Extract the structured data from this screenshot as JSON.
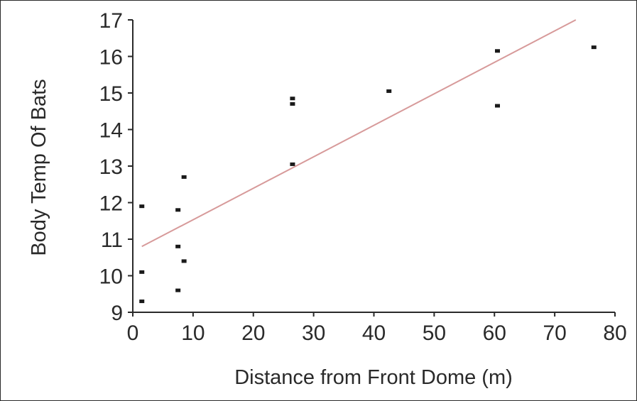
{
  "chart_data": {
    "type": "scatter",
    "title": "",
    "xlabel": "Distance from Front Dome (m)",
    "ylabel": "Body Temp Of Bats",
    "xlim": [
      0,
      80
    ],
    "ylim": [
      9,
      17
    ],
    "x_ticks": [
      "0",
      "10",
      "20",
      "30",
      "40",
      "50",
      "60",
      "70",
      "80"
    ],
    "y_ticks": [
      "9",
      "10",
      "11",
      "12",
      "13",
      "14",
      "15",
      "16",
      "17"
    ],
    "grid": false,
    "legend": "none",
    "series": [
      {
        "points": [
          {
            "x": 1.5,
            "y": 9.3
          },
          {
            "x": 1.5,
            "y": 10.1
          },
          {
            "x": 1.5,
            "y": 11.9
          },
          {
            "x": 7.5,
            "y": 9.6
          },
          {
            "x": 7.5,
            "y": 10.8
          },
          {
            "x": 7.5,
            "y": 11.8
          },
          {
            "x": 8.5,
            "y": 10.4
          },
          {
            "x": 8.5,
            "y": 12.7
          },
          {
            "x": 26.5,
            "y": 13.05
          },
          {
            "x": 26.5,
            "y": 14.7
          },
          {
            "x": 26.5,
            "y": 14.85
          },
          {
            "x": 42.5,
            "y": 15.05
          },
          {
            "x": 60.5,
            "y": 14.65
          },
          {
            "x": 60.5,
            "y": 16.15
          },
          {
            "x": 76.5,
            "y": 16.25
          }
        ],
        "color": "#1a1a1a"
      }
    ],
    "fit_line": {
      "x": [
        1.5,
        73.5
      ],
      "y": [
        10.8,
        17.0
      ],
      "color": "#d79a9a"
    }
  }
}
